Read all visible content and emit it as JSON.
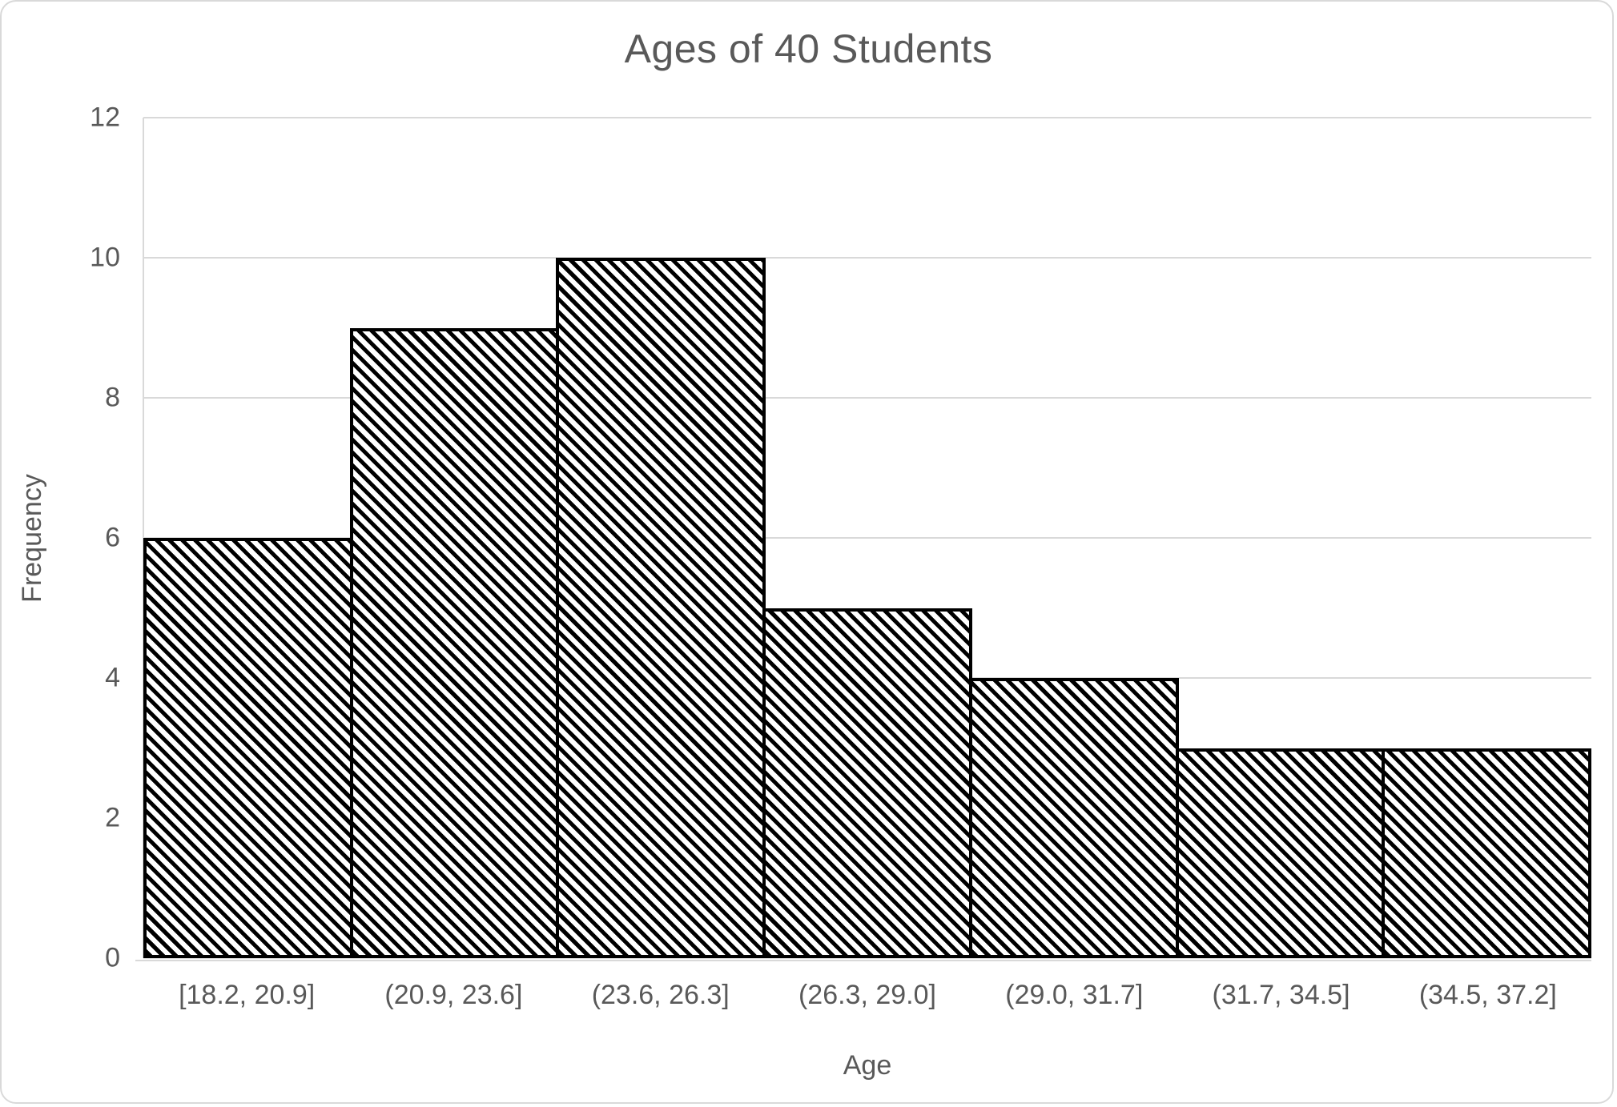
{
  "chart_data": {
    "type": "bar",
    "chart_kind": "histogram",
    "title": "Ages of 40 Students",
    "categories": [
      "[18.2, 20.9]",
      "(20.9, 23.6]",
      "(23.6, 26.3]",
      "(26.3, 29.0]",
      "(29.0, 31.7]",
      "(31.7, 34.5]",
      "(34.5, 37.2]"
    ],
    "values": [
      6,
      9,
      10,
      5,
      4,
      3,
      3
    ],
    "xlabel": "Age",
    "ylabel": "Frequency",
    "ylim": [
      0,
      12
    ],
    "yticks": [
      0,
      2,
      4,
      6,
      8,
      10,
      12
    ],
    "grid": "horizontal",
    "legend": "none",
    "bar_gap": 0,
    "style": {
      "bar_fill": "#FFFFFF",
      "bar_pattern": "diagonal-stripe-down",
      "stripe_color": "#000000",
      "bar_border_color": "#000000",
      "gridline_color": "#D9D9D9",
      "axis_line_color": "#D9D9D9",
      "text_color": "#595959",
      "background": "#FFFFFF",
      "chart_border_color": "#D9D9D9"
    }
  }
}
